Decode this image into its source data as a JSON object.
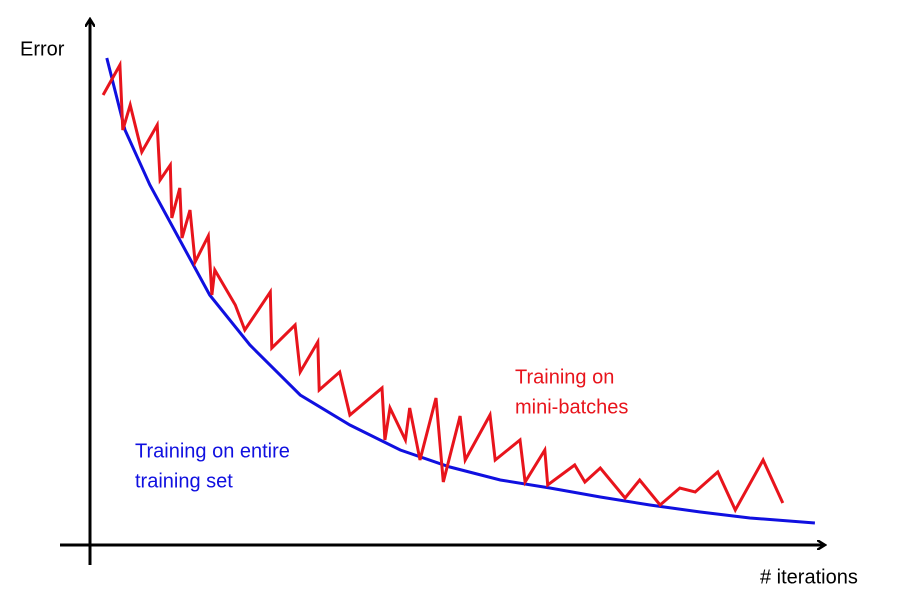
{
  "chart_data": {
    "type": "line",
    "y_label": "Error",
    "x_label": "# iterations",
    "xlim": [
      0,
      100
    ],
    "ylim": [
      0,
      100
    ],
    "series": [
      {
        "label_lines": [
          "Training on entire",
          "training set"
        ],
        "color": "#1010e0",
        "x": [
          2.3,
          4.8,
          8.2,
          12.3,
          16.4,
          21.9,
          28.8,
          35.6,
          42.5,
          49.3,
          56.2,
          63.0,
          69.9,
          76.7,
          83.6,
          90.4,
          99.3
        ],
        "values": [
          97.4,
          83,
          72,
          61,
          50,
          40,
          30,
          24,
          19,
          15.6,
          13,
          11.4,
          9.6,
          8,
          6.6,
          5.4,
          4.4
        ]
      },
      {
        "label_lines": [
          "Training on",
          "mini-batches"
        ],
        "color": "#e8141c",
        "x": [
          1.8,
          4.1,
          4.5,
          5.5,
          7.1,
          9.2,
          9.6,
          11.0,
          11.2,
          12.3,
          12.6,
          13.7,
          14.4,
          16.2,
          16.7,
          17.1,
          19.9,
          21.2,
          24.7,
          24.9,
          28.1,
          28.8,
          31.2,
          31.4,
          34.2,
          35.6,
          40.0,
          40.4,
          41.1,
          43.2,
          43.8,
          45.2,
          47.4,
          48.4,
          50.7,
          51.4,
          54.8,
          55.5,
          58.9,
          59.6,
          62.3,
          62.7,
          66.4,
          67.8,
          69.9,
          73.3,
          75.3,
          78.1,
          80.8,
          82.9,
          86.0,
          88.4,
          92.2,
          94.9
        ],
        "values": [
          90,
          96,
          83,
          88,
          78.6,
          84,
          73,
          76,
          65.4,
          71.4,
          61.4,
          67,
          56.6,
          61.8,
          50,
          55,
          48,
          43,
          50.6,
          39.4,
          44,
          34.6,
          40.6,
          31,
          34.6,
          26,
          31.4,
          21,
          27.4,
          21,
          27.4,
          17,
          29.4,
          12.6,
          25.8,
          17,
          26,
          17,
          21,
          12.6,
          19,
          12,
          16,
          12.6,
          15.4,
          9.4,
          13,
          8,
          11.4,
          10.6,
          14.6,
          7,
          17,
          8.4
        ]
      }
    ]
  }
}
